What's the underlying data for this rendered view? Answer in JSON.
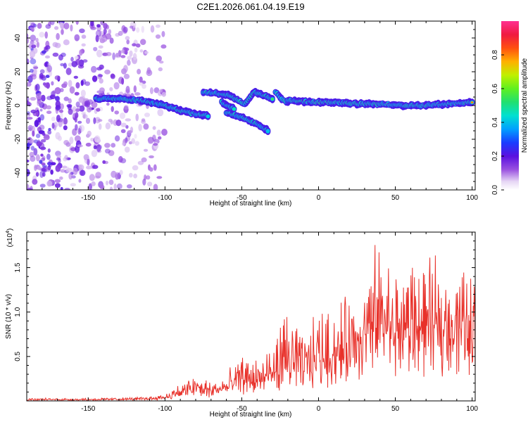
{
  "figure": {
    "title": "C2E1.2026.061.04.19.E19"
  },
  "chart_data": [
    {
      "type": "heatmap",
      "name": "spectrogram",
      "xlabel": "Height of straight line (km)",
      "ylabel": "Frequency (Hz)",
      "xlim": [
        -190,
        102
      ],
      "ylim": [
        -50,
        50
      ],
      "x_ticks": [
        -150,
        -100,
        -50,
        0,
        50,
        100
      ],
      "x_tick_labels": [
        "-150",
        "-100",
        "-50",
        "0",
        "50",
        "100"
      ],
      "y_ticks": [
        -40,
        -20,
        0,
        20,
        40
      ],
      "y_tick_labels": [
        "-40",
        "-20",
        "0",
        "20",
        "40"
      ],
      "noise_region": {
        "x_range": [
          -190,
          -100
        ],
        "y_range": [
          -50,
          50
        ],
        "amplitude_range": [
          0.05,
          0.25
        ]
      },
      "signal_tracks": [
        {
          "name": "main-trace",
          "points": [
            [
              -145,
              4
            ],
            [
              -130,
              4
            ],
            [
              -115,
              3
            ],
            [
              -100,
              0
            ],
            [
              -90,
              -3
            ],
            [
              -80,
              -5
            ],
            [
              -72,
              -6
            ]
          ],
          "peak_amplitude": 0.6
        },
        {
          "name": "lower-branch",
          "points": [
            [
              -60,
              -4
            ],
            [
              -50,
              -7
            ],
            [
              -40,
              -11
            ],
            [
              -33,
              -15
            ]
          ],
          "peak_amplitude": 0.55
        },
        {
          "name": "upper-branch",
          "points": [
            [
              -75,
              8
            ],
            [
              -65,
              7
            ],
            [
              -58,
              6
            ],
            [
              -52,
              3
            ],
            [
              -48,
              1
            ],
            [
              -42,
              8
            ],
            [
              -36,
              6
            ],
            [
              -30,
              4
            ]
          ],
          "peak_amplitude": 0.6
        },
        {
          "name": "diagonal-branch",
          "points": [
            [
              -63,
              2
            ],
            [
              -60,
              0
            ],
            [
              -55,
              -2
            ]
          ],
          "peak_amplitude": 0.5
        },
        {
          "name": "zero-crossing",
          "points": [
            [
              -28,
              8
            ],
            [
              -24,
              4
            ],
            [
              -20,
              2
            ]
          ],
          "peak_amplitude": 0.55
        },
        {
          "name": "steady-trace",
          "points": [
            [
              -20,
              3
            ],
            [
              -5,
              2
            ],
            [
              10,
              2
            ],
            [
              25,
              1
            ],
            [
              40,
              1
            ],
            [
              55,
              0
            ],
            [
              70,
              0
            ],
            [
              85,
              1
            ],
            [
              100,
              2
            ]
          ],
          "peak_amplitude": 0.95
        }
      ],
      "colorbar": {
        "label": "Normalized spectral amplitude",
        "range": [
          0,
          1
        ],
        "ticks": [
          0.0,
          0.2,
          0.4,
          0.6,
          0.8
        ],
        "tick_labels": [
          "0.0",
          "0.2",
          "0.4",
          "0.6",
          "0.8"
        ]
      }
    },
    {
      "type": "line",
      "name": "snr",
      "xlabel": "Height of straight line (km)",
      "ylabel": "SNR (10 * v/v)",
      "y_exponent_label": "(x10",
      "y_exponent": "4",
      "y_exponent_close": ")",
      "xlim": [
        -190,
        102
      ],
      "ylim": [
        0,
        1.9
      ],
      "x_ticks": [
        -150,
        -100,
        -50,
        0,
        50,
        100
      ],
      "x_tick_labels": [
        "-150",
        "-100",
        "-50",
        "0",
        "50",
        "100"
      ],
      "y_ticks": [
        0.5,
        1.0,
        1.5
      ],
      "y_tick_labels": [
        "0.5",
        "1.0",
        "1.5"
      ],
      "series": [
        {
          "name": "SNR",
          "color": "#e8312a",
          "envelope_x": [
            -190,
            -150,
            -120,
            -110,
            -100,
            -90,
            -80,
            -70,
            -60,
            -50,
            -40,
            -30,
            -20,
            -10,
            0,
            10,
            20,
            30,
            40,
            50,
            60,
            70,
            80,
            90,
            102
          ],
          "envelope_base": [
            0.015,
            0.015,
            0.02,
            0.025,
            0.04,
            0.08,
            0.12,
            0.1,
            0.14,
            0.22,
            0.2,
            0.25,
            0.4,
            0.35,
            0.45,
            0.5,
            0.55,
            0.7,
            0.8,
            0.85,
            0.8,
            0.8,
            0.85,
            0.85,
            0.95
          ],
          "envelope_peak": [
            0.03,
            0.03,
            0.04,
            0.05,
            0.08,
            0.2,
            0.3,
            0.22,
            0.3,
            0.5,
            0.48,
            0.65,
            1.1,
            0.7,
            1.05,
            1.0,
            1.2,
            1.3,
            1.9,
            1.4,
            1.6,
            1.5,
            1.5,
            1.6,
            1.3
          ]
        }
      ]
    }
  ]
}
